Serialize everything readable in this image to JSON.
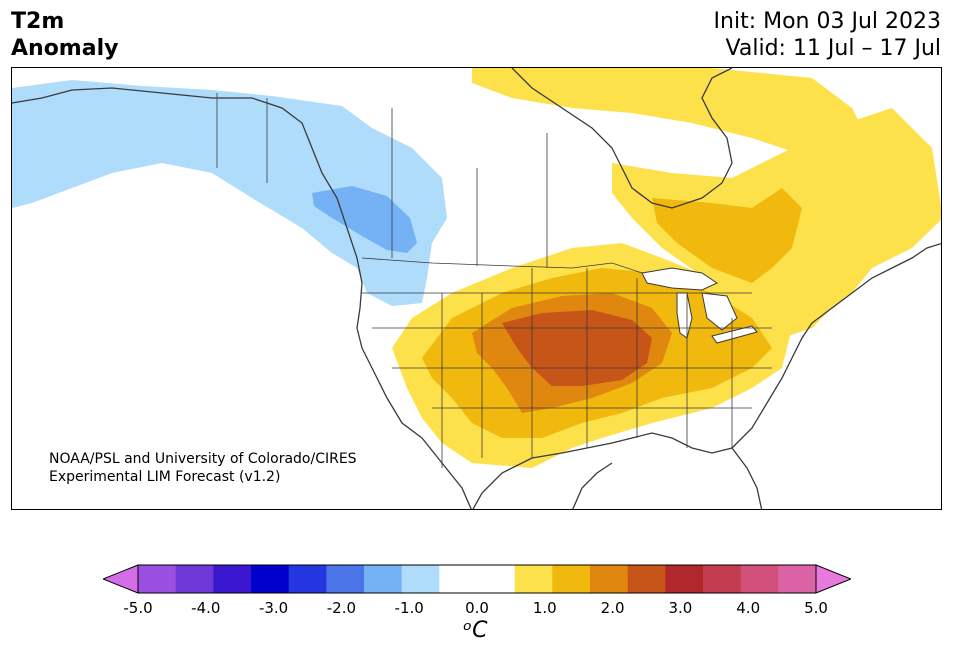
{
  "title": {
    "left_line1": "T2m",
    "left_line2": "Anomaly",
    "right_line1": "Init: Mon 03 Jul 2023",
    "right_line2": "Valid: 11 Jul – 17 Jul"
  },
  "credit": {
    "line1": "NOAA/PSL and University of Colorado/CIRES",
    "line2": "Experimental LIM Forecast (v1.2)"
  },
  "colorbar": {
    "colors": [
      "#d46ee8",
      "#9b4fe0",
      "#6f38d9",
      "#3b18cf",
      "#0000cc",
      "#2436e0",
      "#4a74e8",
      "#74b1f5",
      "#aedcfa",
      "#ffffff",
      "#ffffff",
      "#fde14a",
      "#f1b80d",
      "#df870f",
      "#c85518",
      "#b0282b",
      "#c33b4f",
      "#d14f7b",
      "#db63a5",
      "#e47ad4"
    ],
    "min_color": "#d46ee8",
    "max_color": "#e87ade",
    "tick_labels": [
      "-5.0",
      "-4.0",
      "-3.0",
      "-2.0",
      "-1.0",
      "0.0",
      "1.0",
      "2.0",
      "3.0",
      "4.0",
      "5.0"
    ],
    "unit_label": "ᵒC",
    "range": [
      -5.0,
      5.0
    ],
    "step": 0.5
  },
  "map": {
    "region": "North America",
    "anomalies": {
      "cool_west_canada": "-1.0 to -1.5",
      "warm_central_us": "2.0 to 3.0",
      "warm_east_canada": "0.5 to 1.5"
    }
  }
}
